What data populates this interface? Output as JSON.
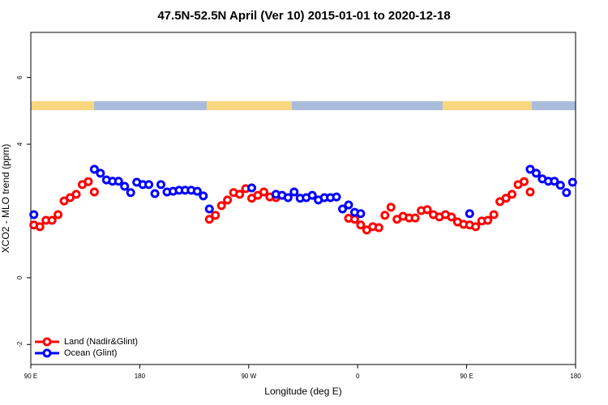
{
  "chart_data": {
    "type": "scatter",
    "title": "47.5N-52.5N April (Ver 10)   2015-01-01 to 2020-12-18",
    "xlabel": "Longitude (deg E)",
    "ylabel": "XCO2 - MLO trend (ppm)",
    "xlim": [
      90,
      540
    ],
    "ylim": [
      -2.6,
      7.35
    ],
    "xticks": [
      {
        "value": 90,
        "label": "90 E"
      },
      180,
      {
        "value": 270,
        "label": "90 W"
      },
      {
        "value": 360,
        "label": "0"
      },
      {
        "value": 450,
        "label": "90 E"
      },
      {
        "value": 540,
        "label": "180"
      }
    ],
    "yticks": [
      -2,
      0,
      4,
      6
    ],
    "legend": "bottom-left",
    "series": [
      {
        "name": "Land (Nadir&Glint)",
        "color": "#ff0000",
        "x": [
          92.5,
          97.5,
          102.5,
          107.5,
          112.5,
          117.5,
          122.5,
          127.5,
          132.5,
          137.5,
          142.5,
          237.5,
          242.5,
          247.5,
          252.5,
          257.5,
          262.5,
          267.5,
          272.5,
          277.5,
          282.5,
          287.5,
          292.5,
          352.5,
          357.5,
          362.5,
          367.5,
          372.5,
          377.5,
          382.5,
          387.5,
          392.5,
          397.5,
          402.5,
          407.5,
          412.5,
          417.5,
          422.5,
          427.5,
          432.5,
          437.5,
          442.5,
          447.5,
          452.5,
          457.5,
          462.5,
          467.5,
          472.5,
          477.5,
          482.5,
          487.5,
          492.5,
          497.5,
          502.5
        ],
        "values": [
          1.58,
          1.53,
          1.72,
          1.72,
          1.89,
          2.3,
          2.4,
          2.5,
          2.79,
          2.88,
          2.57,
          1.75,
          1.87,
          2.16,
          2.33,
          2.55,
          2.5,
          2.67,
          2.38,
          2.47,
          2.57,
          2.42,
          2.4,
          1.78,
          1.75,
          1.58,
          1.43,
          1.53,
          1.5,
          1.87,
          2.11,
          1.75,
          1.84,
          1.79,
          1.79,
          2.01,
          2.04,
          1.89,
          1.82,
          1.89,
          1.82,
          1.67,
          1.6,
          1.58,
          1.53,
          1.7,
          1.72,
          1.89,
          2.28,
          2.38,
          2.5,
          2.79,
          2.88,
          2.57
        ]
      },
      {
        "name": "Ocean (Glint)",
        "color": "#0000ff",
        "x": [
          92.5,
          142.5,
          147.5,
          152.5,
          157.5,
          162.5,
          167.5,
          172.5,
          177.5,
          182.5,
          187.5,
          192.5,
          197.5,
          202.5,
          207.5,
          212.5,
          217.5,
          222.5,
          227.5,
          232.5,
          237.5,
          272.5,
          292.5,
          297.5,
          302.5,
          307.5,
          312.5,
          317.5,
          322.5,
          327.5,
          332.5,
          337.5,
          342.5,
          347.5,
          352.5,
          357.5,
          362.5,
          452.5,
          502.5,
          507.5,
          512.5,
          517.5,
          522.5,
          527.5,
          532.5,
          537.5
        ],
        "values": [
          1.89,
          3.25,
          3.13,
          2.93,
          2.89,
          2.89,
          2.74,
          2.55,
          2.86,
          2.79,
          2.79,
          2.52,
          2.79,
          2.57,
          2.59,
          2.62,
          2.62,
          2.62,
          2.59,
          2.45,
          2.06,
          2.69,
          2.5,
          2.47,
          2.4,
          2.57,
          2.38,
          2.4,
          2.47,
          2.33,
          2.4,
          2.4,
          2.42,
          2.06,
          2.18,
          1.96,
          1.92,
          1.92,
          3.25,
          3.13,
          2.96,
          2.89,
          2.89,
          2.77,
          2.55,
          2.86
        ]
      }
    ]
  }
}
